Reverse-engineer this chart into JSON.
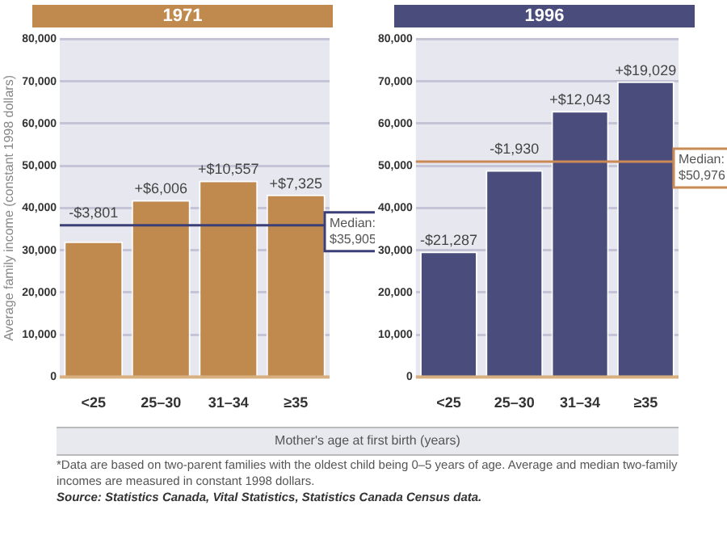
{
  "chart_data": [
    {
      "type": "bar",
      "title": "1971",
      "ylabel": "Average family income (constant 1998 dollars)",
      "xlabel": "Mother's age at first birth (years)",
      "categories": [
        "<25",
        "25–30",
        "31–34",
        "≥35"
      ],
      "values": [
        32100,
        41900,
        46500,
        43200
      ],
      "color": "#c08a4e",
      "ylim": [
        0,
        80000
      ],
      "yticks": [
        {
          "value": 0,
          "label": "0"
        },
        {
          "value": 10000,
          "label": "10,000"
        },
        {
          "value": 20000,
          "label": "20,000"
        },
        {
          "value": 30000,
          "label": "30,000"
        },
        {
          "value": 40000,
          "label": "40,000"
        },
        {
          "value": 50000,
          "label": "50,000"
        },
        {
          "value": 60000,
          "label": "60,000"
        },
        {
          "value": 70000,
          "label": "70,000"
        },
        {
          "value": 80000,
          "label": "80,000"
        }
      ],
      "grid": "y",
      "ref_lines": [
        {
          "axis": "y",
          "value": 35905,
          "label": "Median: $35,905",
          "color": "#3a3f78"
        }
      ],
      "annotations": [
        {
          "text": "-$3,801",
          "x": "<25",
          "y": 32100
        },
        {
          "text": "+$6,006",
          "x": "25–30",
          "y": 41900
        },
        {
          "text": "+$10,557",
          "x": "31–34",
          "y": 46500
        },
        {
          "text": "+$7,325",
          "x": "≥35",
          "y": 43200
        },
        "*Data are based on two-parent families with the oldest child being 0–5 years of age. Average and median two-family incomes are measured in constant 1998 dollars.",
        "Source: Statistics Canada, Vital Statistics, Statistics Canada Census data."
      ]
    },
    {
      "type": "bar",
      "title": "1996",
      "categories": [
        "<25",
        "25–30",
        "31–34",
        "≥35"
      ],
      "values": [
        29700,
        49000,
        63000,
        70000
      ],
      "color": "#4a4c7c",
      "ylim": [
        0,
        80000
      ],
      "yticks": [
        {
          "value": 0,
          "label": "0"
        },
        {
          "value": 10000,
          "label": "10,000"
        },
        {
          "value": 20000,
          "label": "20,000"
        },
        {
          "value": 30000,
          "label": "30,000"
        },
        {
          "value": 40000,
          "label": "40,000"
        },
        {
          "value": 50000,
          "label": "50,000"
        },
        {
          "value": 60000,
          "label": "60,000"
        },
        {
          "value": 70000,
          "label": "70,000"
        },
        {
          "value": 80000,
          "label": "80,000"
        }
      ],
      "grid": "y",
      "ref_lines": [
        {
          "axis": "y",
          "value": 50976,
          "label": "Median: $50,976",
          "color": "#c98a55"
        }
      ],
      "annotations": [
        {
          "text": "-$21,287",
          "x": "<25",
          "y": 29700
        },
        {
          "text": "-$1,930",
          "x": "25–30",
          "y": 49000
        },
        {
          "text": "+$12,043",
          "x": "31–34",
          "y": 63000
        },
        {
          "text": "+$19,029",
          "x": "≥35",
          "y": 70000
        }
      ]
    }
  ]
}
